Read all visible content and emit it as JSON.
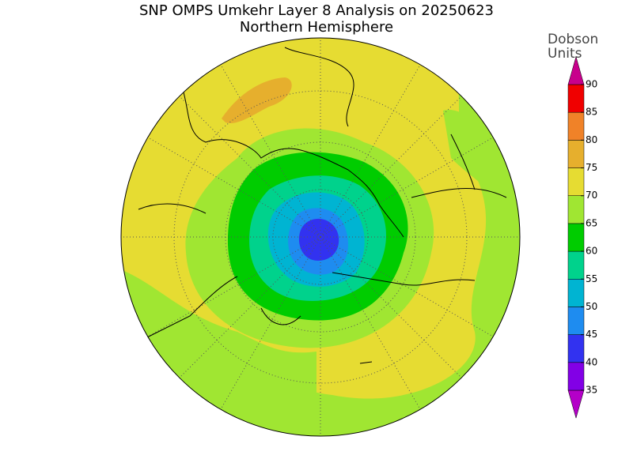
{
  "title": "SNP OMPS Umkehr Layer 8 Analysis on 20250623",
  "subtitle": "Northern Hemisphere",
  "colorbar": {
    "label_lines": [
      "Dobson",
      "Units"
    ],
    "levels": [
      35,
      40,
      45,
      50,
      55,
      60,
      65,
      70,
      75,
      80,
      85,
      90
    ],
    "colors": [
      "#b400c8",
      "#8200e6",
      "#3232f0",
      "#1e8cf0",
      "#00b4d2",
      "#00d28c",
      "#00cc00",
      "#a0e632",
      "#e6dc32",
      "#e6af2d",
      "#f08228",
      "#f00000",
      "#c8008c"
    ]
  }
}
